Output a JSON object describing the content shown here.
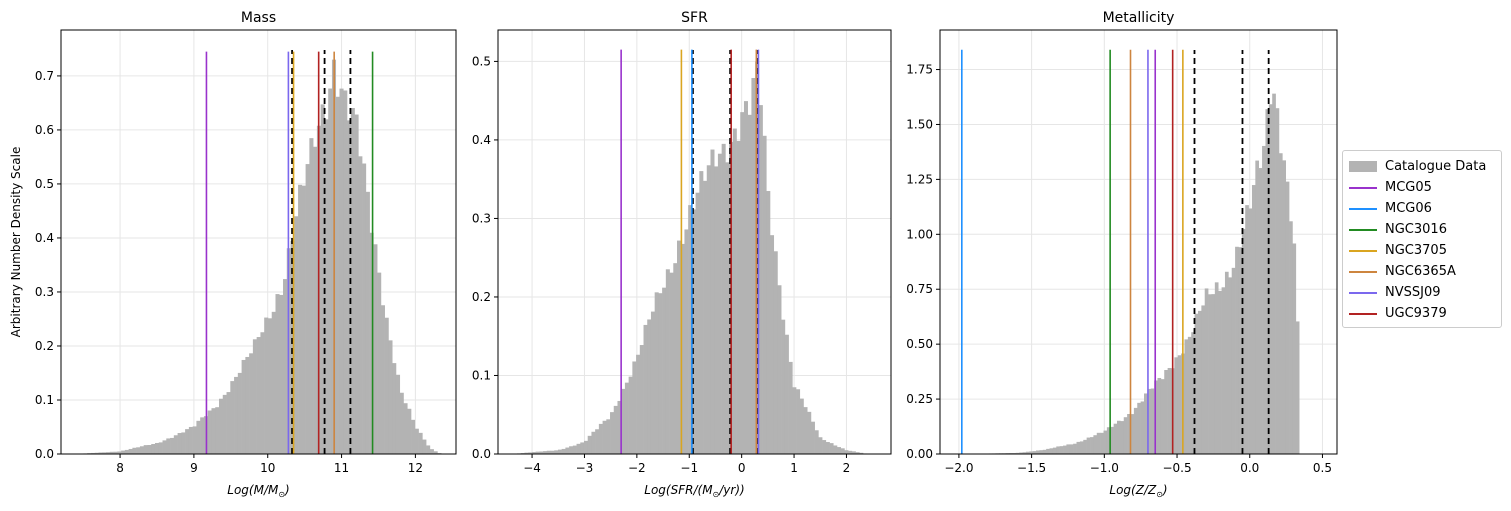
{
  "ylabel": "Arbitrary Number Density Scale",
  "legend": [
    {
      "label": "Catalogue Data",
      "color": "#b3b3b3",
      "kind": "patch"
    },
    {
      "label": "MCG05",
      "color": "#9932cc",
      "kind": "line"
    },
    {
      "label": "MCG06",
      "color": "#1e90ff",
      "kind": "line"
    },
    {
      "label": "NGC3016",
      "color": "#228b22",
      "kind": "line"
    },
    {
      "label": "NGC3705",
      "color": "#daa520",
      "kind": "line"
    },
    {
      "label": "NGC6365A",
      "color": "#cd853f",
      "kind": "line"
    },
    {
      "label": "NVSSJ09",
      "color": "#7b68ee",
      "kind": "line"
    },
    {
      "label": "UGC9379",
      "color": "#b22222",
      "kind": "line"
    }
  ],
  "chart_data": [
    {
      "type": "bar",
      "title": "Mass",
      "xlabel": "Log(M/M⊙)",
      "ylabel": "Arbitrary Number Density Scale",
      "xlim": [
        7.2,
        12.55
      ],
      "ylim": [
        0,
        0.785
      ],
      "xticks": [
        "8",
        "9",
        "10",
        "11",
        "12"
      ],
      "xtick_values": [
        8,
        9,
        10,
        11,
        12
      ],
      "yticks": [
        "0.0",
        "0.1",
        "0.2",
        "0.3",
        "0.4",
        "0.5",
        "0.6",
        "0.7"
      ],
      "ytick_values": [
        0,
        0.1,
        0.2,
        0.3,
        0.4,
        0.5,
        0.6,
        0.7
      ],
      "grid": true,
      "hist_profile": {
        "x": [
          7.4,
          8.0,
          8.5,
          9.0,
          9.3,
          9.6,
          9.8,
          10.0,
          10.2,
          10.4,
          10.6,
          10.8,
          10.9,
          11.0,
          11.2,
          11.4,
          11.6,
          11.8,
          12.0,
          12.2,
          12.35
        ],
        "y": [
          0.0,
          0.005,
          0.02,
          0.05,
          0.09,
          0.15,
          0.19,
          0.25,
          0.32,
          0.45,
          0.55,
          0.66,
          0.74,
          0.69,
          0.6,
          0.42,
          0.26,
          0.12,
          0.05,
          0.01,
          0.0
        ]
      },
      "bin_range": [
        7.3,
        12.4
      ],
      "bins": 100,
      "vlines": [
        {
          "name": "MCG05",
          "x": 9.17,
          "color": "#9932cc",
          "ymax": 0.745
        },
        {
          "name": "NVSSJ09",
          "x": 10.28,
          "color": "#7b68ee",
          "ymax": 0.745
        },
        {
          "name": "NGC3705",
          "x": 10.35,
          "color": "#daa520",
          "ymax": 0.745
        },
        {
          "name": "UGC9379",
          "x": 10.69,
          "color": "#b22222",
          "ymax": 0.745
        },
        {
          "name": "NGC6365A",
          "x": 10.9,
          "color": "#cd853f",
          "ymax": 0.745
        },
        {
          "name": "NGC3016",
          "x": 11.42,
          "color": "#228b22",
          "ymax": 0.745
        }
      ],
      "dashed": [
        10.33,
        10.77,
        11.12
      ]
    },
    {
      "type": "bar",
      "title": "SFR",
      "xlabel": "Log(SFR/(M⊙/yr))",
      "ylabel": "",
      "xlim": [
        -4.65,
        2.85
      ],
      "ylim": [
        0,
        0.54
      ],
      "xticks": [
        "−4",
        "−3",
        "−2",
        "−1",
        "0",
        "1",
        "2"
      ],
      "xtick_values": [
        -4,
        -3,
        -2,
        -1,
        0,
        1,
        2
      ],
      "yticks": [
        "0.0",
        "0.1",
        "0.2",
        "0.3",
        "0.4",
        "0.5"
      ],
      "ytick_values": [
        0,
        0.1,
        0.2,
        0.3,
        0.4,
        0.5
      ],
      "grid": true,
      "hist_profile": {
        "x": [
          -4.4,
          -3.5,
          -3.0,
          -2.5,
          -2.0,
          -1.6,
          -1.2,
          -1.0,
          -0.8,
          -0.5,
          -0.2,
          0.0,
          0.2,
          0.3,
          0.5,
          0.8,
          1.0,
          1.5,
          2.0,
          2.4
        ],
        "y": [
          0.0,
          0.005,
          0.015,
          0.05,
          0.12,
          0.2,
          0.27,
          0.3,
          0.33,
          0.38,
          0.41,
          0.43,
          0.44,
          0.5,
          0.33,
          0.18,
          0.09,
          0.02,
          0.005,
          0.0
        ]
      },
      "bin_range": [
        -4.5,
        2.6
      ],
      "bins": 100,
      "vlines": [
        {
          "name": "MCG05",
          "x": -2.3,
          "color": "#9932cc",
          "ymax": 0.515
        },
        {
          "name": "NGC3705",
          "x": -1.15,
          "color": "#daa520",
          "ymax": 0.515
        },
        {
          "name": "MCG06",
          "x": -0.95,
          "color": "#1e90ff",
          "ymax": 0.515
        },
        {
          "name": "UGC9379",
          "x": -0.2,
          "color": "#b22222",
          "ymax": 0.515
        },
        {
          "name": "NGC6365A",
          "x": 0.28,
          "color": "#cd853f",
          "ymax": 0.515
        },
        {
          "name": "NVSSJ09",
          "x": 0.32,
          "color": "#7b68ee",
          "ymax": 0.515
        }
      ],
      "dashed": [
        -0.93,
        -0.22,
        0.3
      ]
    },
    {
      "type": "bar",
      "title": "Metallicity",
      "xlabel": "Log(Z/Z⊙)",
      "ylabel": "",
      "xlim": [
        -2.13,
        0.6
      ],
      "ylim": [
        0,
        1.93
      ],
      "xticks": [
        "−2.0",
        "−1.5",
        "−1.0",
        "−0.5",
        "0.0",
        "0.5"
      ],
      "xtick_values": [
        -2,
        -1.5,
        -1,
        -0.5,
        0,
        0.5
      ],
      "yticks": [
        "0.00",
        "0.25",
        "0.50",
        "0.75",
        "1.00",
        "1.25",
        "1.50",
        "1.75"
      ],
      "ytick_values": [
        0,
        0.25,
        0.5,
        0.75,
        1.0,
        1.25,
        1.5,
        1.75
      ],
      "grid": true,
      "hist_profile": {
        "x": [
          -1.95,
          -1.6,
          -1.4,
          -1.2,
          -1.0,
          -0.8,
          -0.6,
          -0.4,
          -0.3,
          -0.2,
          -0.1,
          0.0,
          0.1,
          0.15,
          0.2,
          0.3,
          0.33
        ],
        "y": [
          0.0,
          0.005,
          0.02,
          0.05,
          0.1,
          0.2,
          0.35,
          0.55,
          0.7,
          0.78,
          0.9,
          1.1,
          1.4,
          1.75,
          1.55,
          1.0,
          0.55
        ]
      },
      "bin_range": [
        -1.98,
        0.34
      ],
      "bins": 100,
      "vlines": [
        {
          "name": "MCG06",
          "x": -1.98,
          "color": "#1e90ff",
          "ymax": 1.84
        },
        {
          "name": "NGC3016",
          "x": -0.96,
          "color": "#228b22",
          "ymax": 1.84
        },
        {
          "name": "NGC6365A",
          "x": -0.82,
          "color": "#cd853f",
          "ymax": 1.84
        },
        {
          "name": "NVSSJ09",
          "x": -0.7,
          "color": "#7b68ee",
          "ymax": 1.84
        },
        {
          "name": "MCG05",
          "x": -0.65,
          "color": "#9932cc",
          "ymax": 1.84
        },
        {
          "name": "UGC9379",
          "x": -0.53,
          "color": "#b22222",
          "ymax": 1.84
        },
        {
          "name": "NGC3705",
          "x": -0.46,
          "color": "#daa520",
          "ymax": 1.84
        }
      ],
      "dashed": [
        -0.38,
        -0.05,
        0.13
      ]
    }
  ]
}
